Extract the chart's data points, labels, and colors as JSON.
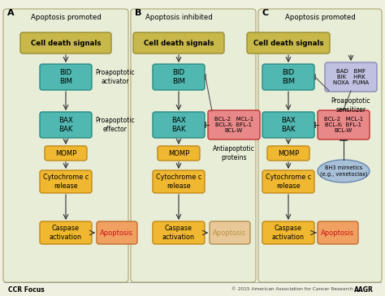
{
  "fig_w": 4.74,
  "fig_h": 3.65,
  "dpi": 100,
  "bg_color": "#f0f0e0",
  "panel_bg": "#e8edd8",
  "panel_border": "#aaa870",
  "cell_death_fc": "#c8b84a",
  "cell_death_ec": "#9a8c30",
  "teal_fc": "#50b8b0",
  "teal_ec": "#2a8a82",
  "yellow_fc": "#f0b830",
  "yellow_ec": "#c08818",
  "orange_fc": "#f0a060",
  "orange_ec": "#c07030",
  "red_fc": "#e88888",
  "red_ec": "#c03030",
  "lav_fc": "#c0c0e0",
  "lav_ec": "#8888b8",
  "blue_fc": "#a8c0d8",
  "blue_ec": "#6888b0",
  "arrow_color": "#303030",
  "text_dark": "#111111",
  "apoptosis_red": "#cc1111",
  "apoptosis_b_fc": "#e8c898",
  "apoptosis_b_ec": "#b09050",
  "apoptosis_b_tc": "#b89040",
  "footer_left": "CCR Focus",
  "footer_right": "AAGR",
  "copyright": "© 2015 American Association for Cancer Research"
}
